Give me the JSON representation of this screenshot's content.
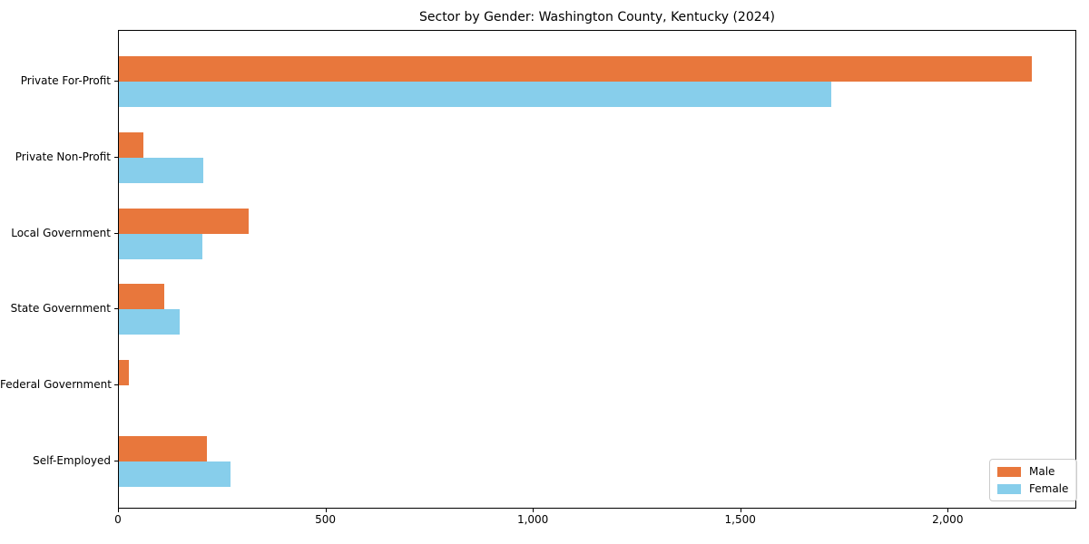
{
  "title": "Sector by Gender: Washington County, Kentucky (2024)",
  "chart_data": {
    "type": "bar",
    "orientation": "horizontal",
    "title": "Sector by Gender: Washington County, Kentucky (2024)",
    "categories": [
      "Private For-Profit",
      "Private Non-Profit",
      "Local Government",
      "State Government",
      "Federal Government",
      "Self-Employed"
    ],
    "series": [
      {
        "name": "Male",
        "color": "#e8773c",
        "values": [
          2200,
          60,
          312,
          110,
          24,
          213
        ]
      },
      {
        "name": "Female",
        "color": "#87ceeb",
        "values": [
          1718,
          203,
          202,
          146,
          0,
          268
        ]
      }
    ],
    "xlabel": "",
    "ylabel": "",
    "xlim": [
      0,
      2310
    ],
    "x_ticks": [
      0,
      500,
      1000,
      1500,
      2000
    ],
    "x_tick_labels": [
      "0",
      "500",
      "1,000",
      "1,500",
      "2,000"
    ],
    "grid": false,
    "legend": {
      "position": "lower-right",
      "entries": [
        "Male",
        "Female"
      ]
    }
  },
  "colors": {
    "male": "#e8773c",
    "female": "#87ceeb",
    "spine": "#000000",
    "legend_border": "#cccccc",
    "background": "#ffffff",
    "text": "#000000"
  }
}
